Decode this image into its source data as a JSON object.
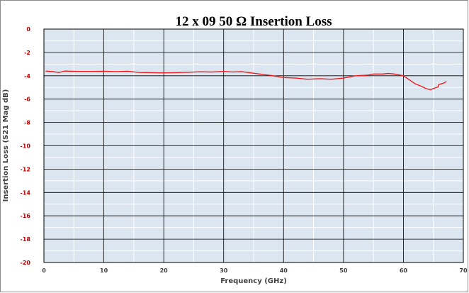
{
  "chart_data": {
    "type": "line",
    "title": "12 x 09  50 Ω Insertion Loss",
    "xlabel": "Frequency (GHz)",
    "ylabel": "Insertion Loss (S21 Mag dB)",
    "xlim": [
      0,
      70
    ],
    "ylim": [
      -20,
      0
    ],
    "x_major_ticks": [
      0,
      10,
      20,
      30,
      40,
      50,
      60,
      70
    ],
    "y_major_ticks": [
      0,
      -2,
      -4,
      -6,
      -8,
      -10,
      -12,
      -14,
      -16,
      -18,
      -20
    ],
    "x_tick_labels": [
      "0",
      "10",
      "20",
      "30",
      "40",
      "50",
      "60",
      "70"
    ],
    "y_tick_labels": [
      "0",
      "-2",
      "-4",
      "-6",
      "-8",
      "-10",
      "-12",
      "-14",
      "-16",
      "-18",
      "-20"
    ],
    "grid": true,
    "colors": {
      "plot_background": "#dce6f1",
      "line": "#ee1c1c",
      "major_grid": "#000000",
      "minor_grid": "#ffffff"
    },
    "series": [
      {
        "x": [
          0.3,
          1.5,
          2.5,
          3.5,
          4.5,
          6,
          8,
          10,
          12,
          14,
          16,
          18,
          20,
          22,
          24,
          26,
          28,
          30,
          31.5,
          33,
          34.5,
          36,
          38,
          40,
          42,
          44,
          46,
          48,
          50,
          52,
          54,
          55,
          56.5,
          57.5,
          58.5,
          60,
          61,
          62,
          63,
          63.8,
          64.5,
          65.2,
          65.8,
          65.9,
          66.6,
          67.2
        ],
        "y": [
          -3.6,
          -3.65,
          -3.72,
          -3.6,
          -3.62,
          -3.63,
          -3.63,
          -3.62,
          -3.64,
          -3.62,
          -3.72,
          -3.73,
          -3.75,
          -3.73,
          -3.7,
          -3.66,
          -3.68,
          -3.63,
          -3.67,
          -3.65,
          -3.75,
          -3.85,
          -3.98,
          -4.15,
          -4.2,
          -4.3,
          -4.25,
          -4.3,
          -4.2,
          -4.0,
          -3.95,
          -3.85,
          -3.85,
          -3.8,
          -3.85,
          -4.0,
          -4.35,
          -4.7,
          -4.9,
          -5.1,
          -5.2,
          -5.05,
          -4.95,
          -4.75,
          -4.65,
          -4.5
        ]
      }
    ]
  }
}
